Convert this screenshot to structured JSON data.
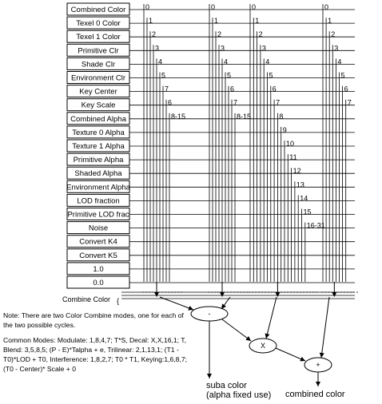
{
  "sources": [
    "Combined Color",
    "Texel 0 Color",
    "Texel 1 Color",
    "Primitive Clr",
    "Shade Clr",
    "Environment Clr",
    "Key Center",
    "Key Scale",
    "Combined Alpha",
    "Texture 0 Alpha",
    "Texture 1 Alpha",
    "Primitive Alpha",
    "Shaded Alpha",
    "Environment Alpha",
    "LOD fraction",
    "Primitive LOD frac",
    "Noise",
    "Convert K4",
    "Convert K5",
    "1.0",
    "0.0"
  ],
  "mux_columns": [
    {
      "ticks": [
        "0",
        "1",
        "2",
        "3",
        "4",
        "5",
        "7",
        "6",
        "8-15"
      ]
    },
    {
      "ticks": [
        "0",
        "1",
        "2",
        "3",
        "4",
        "5",
        "6",
        "7",
        "8-15"
      ]
    },
    {
      "ticks": [
        "0",
        "1",
        "2",
        "3",
        "4",
        "5",
        "6",
        "7",
        "8",
        "9",
        "10",
        "11",
        "12",
        "13",
        "14",
        "15",
        "16-31"
      ]
    },
    {
      "ticks": [
        "0",
        "1",
        "2",
        "3",
        "4",
        "5",
        "6",
        "7"
      ]
    }
  ],
  "combine_label": "Combine Color",
  "ops": {
    "sub": "-",
    "mul": "X",
    "add": "+"
  },
  "note": "Note: There are two Color Combine modes, one for each of the two possible cycles.",
  "modes": "Common Modes: Modulate: 1,8,4,7; T*S, Decal: X,X,16,1; T, Blend: 3,5,8,5; (P - E)*Talpha + e, Trilinear: 2,1,13,1; (T1 - T0)*LOD + T0, Interference: 1,8,2,7; T0 * T1, Keying:1,6,8,7; (T0 - Center)* Scale + 0",
  "suba_label": "suba color",
  "suba_sub": "(alpha fixed use)",
  "output_label": "combined color"
}
